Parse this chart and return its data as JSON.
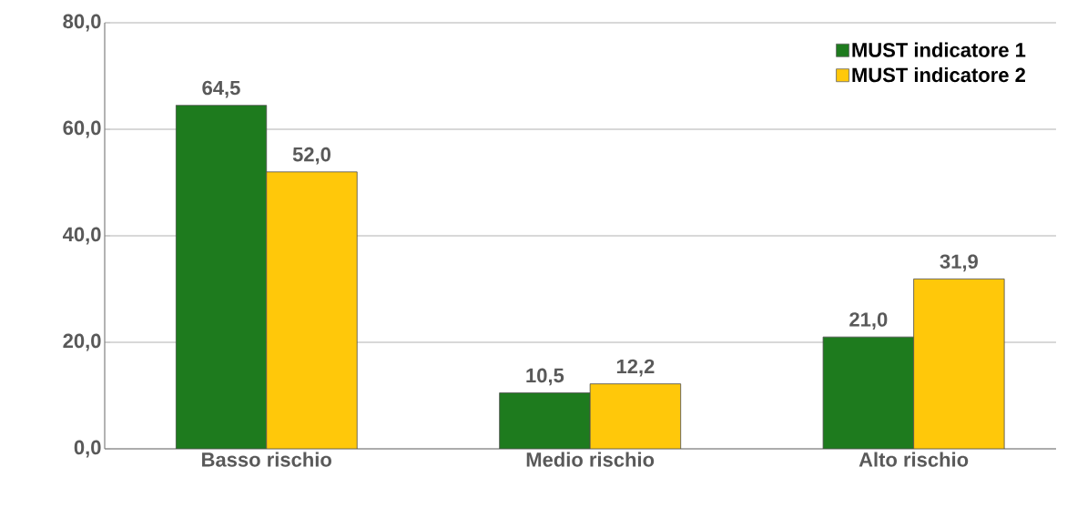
{
  "chart_data": {
    "type": "bar",
    "categories": [
      "Basso rischio",
      "Medio rischio",
      "Alto rischio"
    ],
    "series": [
      {
        "name": "MUST indicatore 1",
        "color": "#1e7b1e",
        "values": [
          64.5,
          10.5,
          21.0
        ],
        "value_labels": [
          "64,5",
          "10,5",
          "21,0"
        ]
      },
      {
        "name": "MUST indicatore 2",
        "color": "#ffc80a",
        "values": [
          52.0,
          12.2,
          31.9
        ],
        "value_labels": [
          "52,0",
          "12,2",
          "31,9"
        ]
      }
    ],
    "ylim": [
      0,
      80
    ],
    "yticks": [
      {
        "value": 0,
        "label": "0,0"
      },
      {
        "value": 20,
        "label": "20,0"
      },
      {
        "value": 40,
        "label": "40,0"
      },
      {
        "value": 60,
        "label": "60,0"
      },
      {
        "value": 80,
        "label": "80,0"
      }
    ],
    "grid": "y",
    "legend": "top right"
  }
}
